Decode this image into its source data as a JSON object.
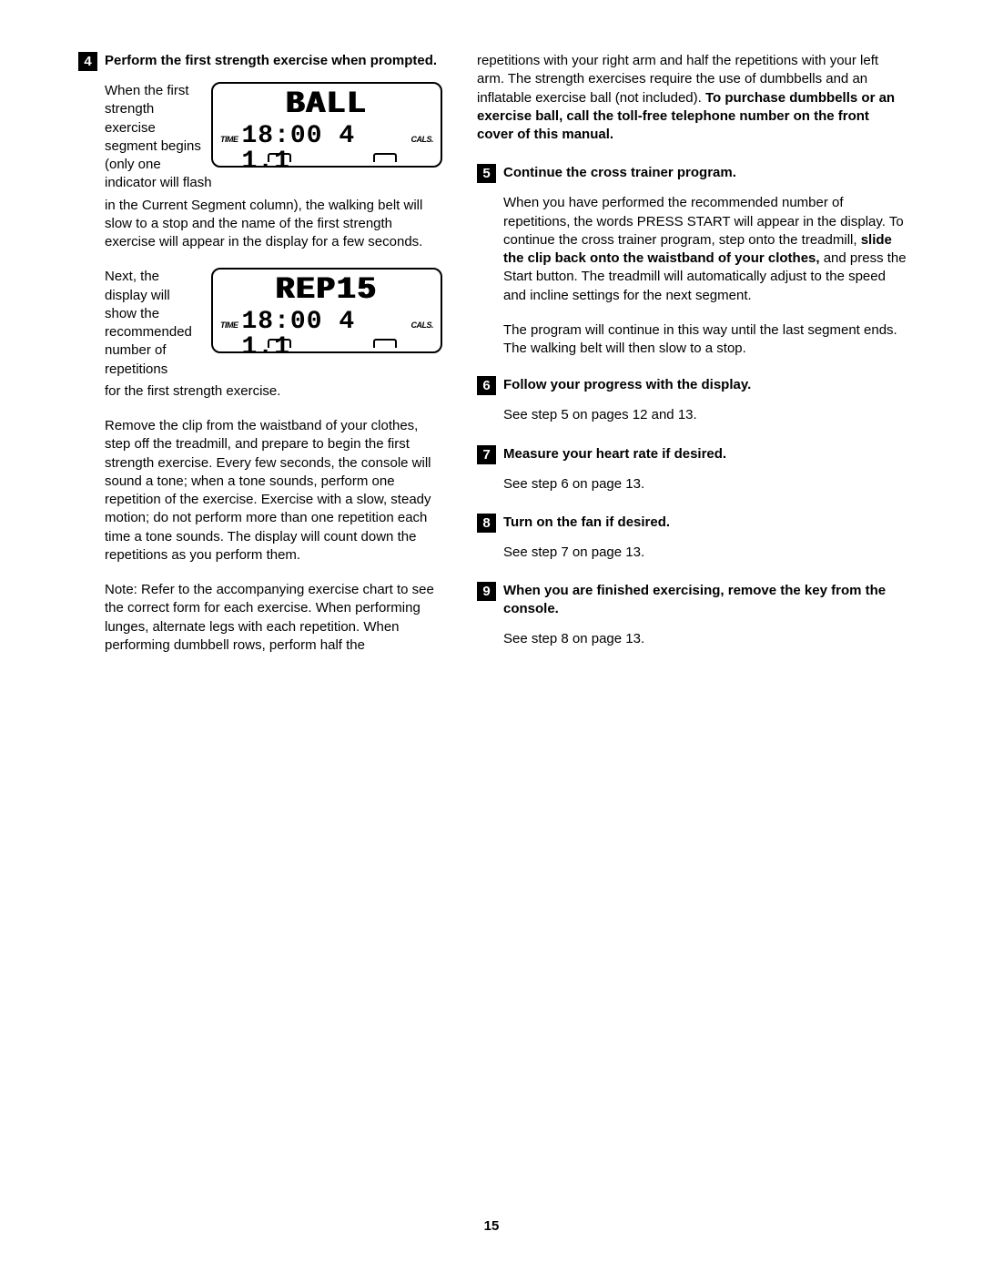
{
  "pageNumber": "15",
  "leftCol": {
    "step4": {
      "num": "4",
      "title": "Perform the first strength exercise when prompted.",
      "para1_wrap": "When the first strength exercise segment begins (only one indicator will flash",
      "para1_cont": "in the Current Segment column), the walking belt will slow to a stop and the name of the first strength exercise will appear in the display for a few seconds.",
      "para2_wrap": "Next, the display will show the recommended number of repetitions",
      "para2_cont": "for the first strength exercise.",
      "para3": "Remove the clip from the waistband of your clothes, step off the treadmill, and prepare to begin the first strength exercise. Every few seconds, the console will sound a tone; when a tone sounds, perform one repetition of the exercise. Exercise with a slow, steady motion; do not perform more than one repetition each time a tone sounds. The display will count down the repetitions as you perform them.",
      "para4": "Note: Refer to the accompanying exercise chart to see the correct form for each exercise. When performing lunges, alternate legs with each repetition. When performing dumbbell rows, perform half the"
    },
    "lcd1": {
      "text": "BALL",
      "timeLabel": "TIME",
      "segment": "18:00 4 1.1",
      "calsLabel": "CALS."
    },
    "lcd2": {
      "text": "REP15",
      "timeLabel": "TIME",
      "segment": "18:00 4 1.1",
      "calsLabel": "CALS."
    }
  },
  "rightCol": {
    "contPara_a": "repetitions with your right arm and half the repetitions with your left arm. The strength exercises require the use of dumbbells and an inflatable exercise ball (not included). ",
    "contPara_b": "To purchase dumbbells or an exercise ball, call the toll-free telephone number on the front cover of this manual.",
    "step5": {
      "num": "5",
      "title": "Continue the cross trainer program.",
      "para1_a": "When you have performed the recommended number of repetitions, the words PRESS START will appear in the display. To continue the cross trainer program, step onto the treadmill, ",
      "para1_b": "slide the clip back onto the waistband of your clothes,",
      "para1_c": " and press the Start button. The treadmill will automatically adjust to the speed and incline settings for the next segment.",
      "para2": "The program will continue in this way until the last segment ends. The walking belt will then slow to a stop."
    },
    "step6": {
      "num": "6",
      "title": "Follow your progress with the display.",
      "body": "See step 5 on pages 12 and 13."
    },
    "step7": {
      "num": "7",
      "title": "Measure your heart rate if desired.",
      "body": "See step 6 on page 13."
    },
    "step8": {
      "num": "8",
      "title": "Turn on the fan if desired.",
      "body": "See step 7 on page 13."
    },
    "step9": {
      "num": "9",
      "title": "When you are finished exercising, remove the key from the console.",
      "body": "See step 8 on page 13."
    }
  }
}
